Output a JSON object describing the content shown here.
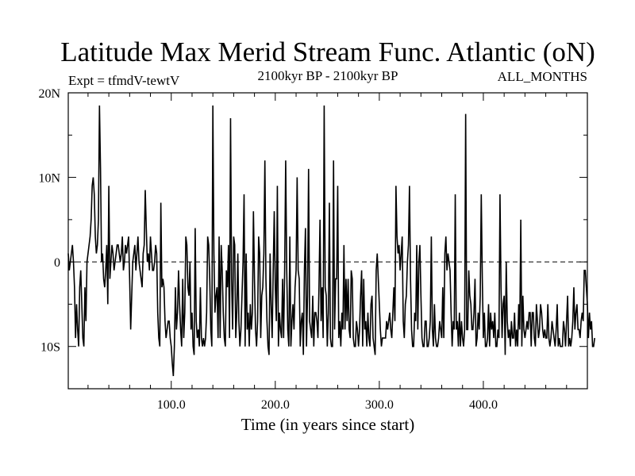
{
  "chart_data": {
    "type": "line",
    "title": "Latitude Max Merid Stream Func. Atlantic (oN)",
    "subtitle_left": "Expt = tfmdV-tewtV",
    "subtitle_center": "2100kyr BP - 2100kyr BP",
    "subtitle_right": "ALL_MONTHS",
    "xlabel": "Time (in years since start)",
    "ylabel": "",
    "xlim": [
      1,
      500
    ],
    "ylim": [
      -15,
      20
    ],
    "x_ticks": [
      {
        "value": 100,
        "label": "100.0"
      },
      {
        "value": 200,
        "label": "200.0"
      },
      {
        "value": 300,
        "label": "300.0"
      },
      {
        "value": 400,
        "label": "400.0"
      }
    ],
    "y_ticks": [
      {
        "value": 20,
        "label": "20N"
      },
      {
        "value": 10,
        "label": "10N"
      },
      {
        "value": 0,
        "label": "0"
      },
      {
        "value": -10,
        "label": "10S"
      }
    ],
    "reference_line": {
      "value": 0,
      "style": "dashed"
    },
    "grid": false,
    "colors": {
      "line": "#000000",
      "axis": "#000000",
      "background": "#ffffff"
    },
    "series": [
      {
        "x_start": 1,
        "x_step": 1,
        "values": [
          1,
          -1,
          0,
          1,
          2,
          0,
          -3,
          -9,
          -5,
          -8,
          -10,
          -3,
          -1,
          -5,
          -9,
          -10,
          -3,
          -7,
          0,
          1,
          2,
          3,
          5,
          9,
          10,
          8,
          3,
          1,
          2,
          5,
          18.5,
          11,
          0,
          1,
          -2,
          -3,
          -1,
          2,
          -5,
          9,
          -2,
          0,
          2,
          1,
          -1,
          0,
          1,
          2,
          2,
          1,
          0,
          1,
          3,
          -1,
          0,
          2,
          1,
          2,
          3,
          -2,
          -8,
          -4,
          0,
          1,
          2,
          -1,
          1,
          3,
          0,
          -1,
          -2,
          -3,
          1,
          2,
          8.5,
          4,
          0,
          1,
          -1,
          3,
          1,
          -1,
          -1,
          0,
          2,
          1,
          -6,
          -9,
          -10,
          7,
          -3,
          -2,
          -3,
          -7,
          -9,
          -8,
          -7,
          -7,
          -9,
          -10,
          -12,
          -13.5,
          -10,
          -3,
          -8,
          -6,
          -1,
          -5,
          -8,
          -10,
          -2,
          -9,
          -6,
          3,
          2,
          -3,
          -4,
          0,
          -8,
          -6,
          -10,
          -11,
          4,
          -7,
          -9,
          -8,
          -10,
          -3,
          -9,
          -10,
          -9,
          -10,
          -9,
          -6,
          3,
          2,
          -2,
          -8,
          -10,
          18.5,
          1,
          -6,
          -4,
          -3,
          -9,
          3,
          -9,
          2,
          -1,
          -6,
          -9,
          -10,
          -1,
          -3,
          2,
          -9,
          17,
          -2,
          -8,
          3,
          2,
          -9,
          -6,
          1,
          -7,
          -10,
          -8,
          -4,
          0,
          8,
          -10,
          1,
          -8,
          -6,
          -10,
          -5,
          -8,
          -6,
          6,
          -2,
          -8,
          -10,
          -7,
          3,
          1,
          -9,
          -4,
          -3,
          1,
          12,
          -2,
          -7,
          -10,
          -11,
          1,
          -5,
          -9,
          -1,
          6,
          -3,
          -7,
          9,
          -10,
          -6,
          -8,
          -9,
          -2,
          -9,
          -1,
          12,
          -1,
          -8,
          -10,
          3,
          -10,
          -7,
          -5,
          -8,
          -3,
          -1,
          10,
          -1,
          -2,
          -10,
          -7,
          -6,
          -11,
          -1,
          4,
          -10,
          -4,
          11,
          -7,
          -8,
          -9,
          -4,
          -10,
          -6,
          -6,
          -7,
          -9,
          -3,
          5,
          -7,
          -3,
          -9,
          18.5,
          -3,
          -4,
          -10,
          -6,
          7,
          -9,
          -10,
          -10,
          12,
          -8,
          -2,
          -2,
          9,
          -9,
          -7,
          -10,
          -6,
          -8,
          2,
          -8,
          -2,
          -7,
          -2,
          -8,
          -9,
          -1,
          -2,
          -9,
          -10,
          -10,
          -7,
          -8,
          -10,
          -8,
          -4,
          -1,
          -10,
          -2,
          -8,
          -7,
          -10,
          -6,
          -9,
          -10,
          -5,
          -4,
          -9,
          -10,
          -11,
          -1,
          1,
          -2,
          -5,
          -8,
          -10,
          -9,
          -9,
          -9,
          -9,
          -7,
          -8,
          -7,
          -6,
          -8,
          -9,
          -6,
          -3,
          -7,
          9,
          3,
          1,
          2,
          -1,
          1,
          3,
          -7,
          -9,
          -5,
          -4,
          0,
          2,
          9,
          -2,
          -8,
          -10,
          -10,
          -6,
          -7,
          2,
          -8,
          0,
          2,
          -4,
          -9,
          -10,
          -10,
          -7,
          -7,
          -10,
          -10,
          -9,
          -7,
          3,
          -8,
          -10,
          -5,
          -9,
          -10,
          -10,
          -9,
          -7,
          -8,
          -9,
          -3,
          -9,
          1,
          3,
          -1,
          1,
          0,
          -1,
          -6,
          -10,
          -7,
          -8,
          8,
          -8,
          -7,
          -10,
          -6,
          -10,
          -7,
          -9,
          -10,
          -8,
          17.5,
          -8,
          -8,
          -1,
          -4,
          -5,
          -8,
          -8,
          -6,
          -2,
          -10,
          -9,
          -6,
          -8,
          -4,
          8,
          -2,
          -9,
          -6,
          -10,
          -10,
          -9,
          -5,
          -10,
          -6,
          -8,
          -7,
          -9,
          -6,
          -10,
          -10,
          -8,
          -9,
          8,
          -3,
          -9,
          -5,
          -4,
          -11,
          0,
          -7,
          -9,
          -8,
          -10,
          -7,
          -9,
          -9,
          -6,
          -10,
          -8,
          -10,
          -5,
          -8,
          5,
          -10,
          -4,
          -8,
          -9,
          -8,
          -7,
          -8,
          -6,
          -6,
          -10,
          -6,
          -6,
          -9,
          -10,
          -5,
          -7,
          -9,
          -8,
          -5,
          -6,
          -8,
          -9,
          -8,
          -9,
          -9,
          -5,
          -9,
          -10,
          -9,
          -7,
          -8,
          -9,
          -10,
          -8,
          -5,
          -10,
          -9,
          -10,
          -10,
          -10,
          -7,
          -8,
          -10,
          -7,
          -4,
          -10,
          -9,
          -10,
          -9,
          -7,
          -3,
          -8,
          -6,
          -5,
          -8,
          -8,
          -9,
          -7,
          -6,
          -7,
          -1,
          -1,
          -3,
          -5,
          -9,
          -6,
          -8,
          -7,
          -10,
          -10,
          -9
        ]
      }
    ]
  }
}
